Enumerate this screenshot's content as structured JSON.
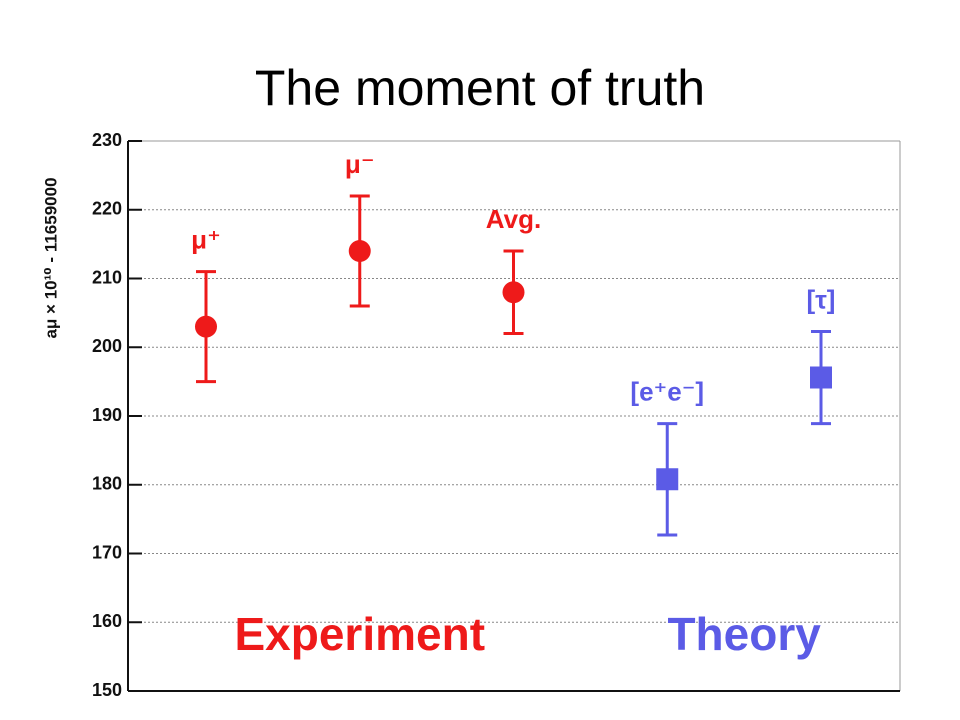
{
  "chart_data": {
    "type": "errorbar",
    "title": "The moment of truth",
    "y_label": "aμ × 10¹⁰ - 11659000",
    "categories": [
      "μ⁺",
      "μ⁻",
      "Avg.",
      "[e⁺e⁻]",
      "[τ]"
    ],
    "series": [
      {
        "name": "Experiment",
        "color": "#ee1a1a",
        "marker": "circle",
        "values": [
          203,
          214,
          208,
          null,
          null
        ],
        "errors": [
          8,
          8,
          6,
          null,
          null
        ]
      },
      {
        "name": "Theory",
        "color": "#5b5be6",
        "marker": "square",
        "values": [
          null,
          null,
          null,
          180.8,
          195.6
        ],
        "errors": [
          null,
          null,
          null,
          8.1,
          6.7
        ]
      }
    ],
    "ylim": [
      150,
      230
    ],
    "yticks": [
      150,
      160,
      170,
      180,
      190,
      200,
      210,
      220,
      230
    ],
    "grid": true
  }
}
